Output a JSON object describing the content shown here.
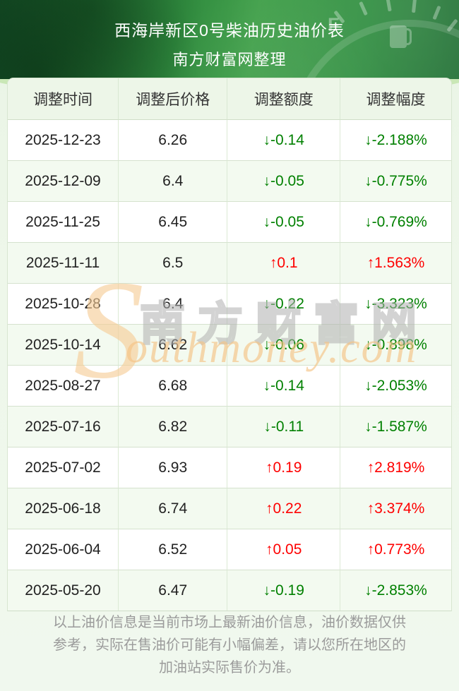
{
  "header": {
    "title": "西海岸新区0号柴油历史油价表",
    "subtitle": "南方财富网整理",
    "gauge_letter": "F"
  },
  "table": {
    "columns": [
      "调整时间",
      "调整后价格",
      "调整额度",
      "调整幅度"
    ],
    "rows": [
      {
        "date": "2025-12-23",
        "price": "6.26",
        "change": "↓-0.14",
        "percent": "↓-2.188%",
        "dir": "down"
      },
      {
        "date": "2025-12-09",
        "price": "6.4",
        "change": "↓-0.05",
        "percent": "↓-0.775%",
        "dir": "down"
      },
      {
        "date": "2025-11-25",
        "price": "6.45",
        "change": "↓-0.05",
        "percent": "↓-0.769%",
        "dir": "down"
      },
      {
        "date": "2025-11-11",
        "price": "6.5",
        "change": "↑0.1",
        "percent": "↑1.563%",
        "dir": "up"
      },
      {
        "date": "2025-10-28",
        "price": "6.4",
        "change": "↓-0.22",
        "percent": "↓-3.323%",
        "dir": "down"
      },
      {
        "date": "2025-10-14",
        "price": "6.62",
        "change": "↓-0.06",
        "percent": "↓-0.898%",
        "dir": "down"
      },
      {
        "date": "2025-08-27",
        "price": "6.68",
        "change": "↓-0.14",
        "percent": "↓-2.053%",
        "dir": "down"
      },
      {
        "date": "2025-07-16",
        "price": "6.82",
        "change": "↓-0.11",
        "percent": "↓-1.587%",
        "dir": "down"
      },
      {
        "date": "2025-07-02",
        "price": "6.93",
        "change": "↑0.19",
        "percent": "↑2.819%",
        "dir": "up"
      },
      {
        "date": "2025-06-18",
        "price": "6.74",
        "change": "↑0.22",
        "percent": "↑3.374%",
        "dir": "up"
      },
      {
        "date": "2025-06-04",
        "price": "6.52",
        "change": "↑0.05",
        "percent": "↑0.773%",
        "dir": "up"
      },
      {
        "date": "2025-05-20",
        "price": "6.47",
        "change": "↓-0.19",
        "percent": "↓-2.853%",
        "dir": "down"
      }
    ]
  },
  "watermark": {
    "s": "S",
    "cn": "南方财富网",
    "en": "outhmoney.com"
  },
  "footer": {
    "note": "以上油价信息是当前市场上最新油价信息，油价数据仅供参考，实际在售油价可能有小幅偏差，请以您所在地区的加油站实际售价为准。"
  },
  "colors": {
    "increase": "#fe0000",
    "decrease": "#008000",
    "hero_green": "#2f8a3e",
    "row_alt": "#f3faf0",
    "border": "#d5e2ce"
  }
}
